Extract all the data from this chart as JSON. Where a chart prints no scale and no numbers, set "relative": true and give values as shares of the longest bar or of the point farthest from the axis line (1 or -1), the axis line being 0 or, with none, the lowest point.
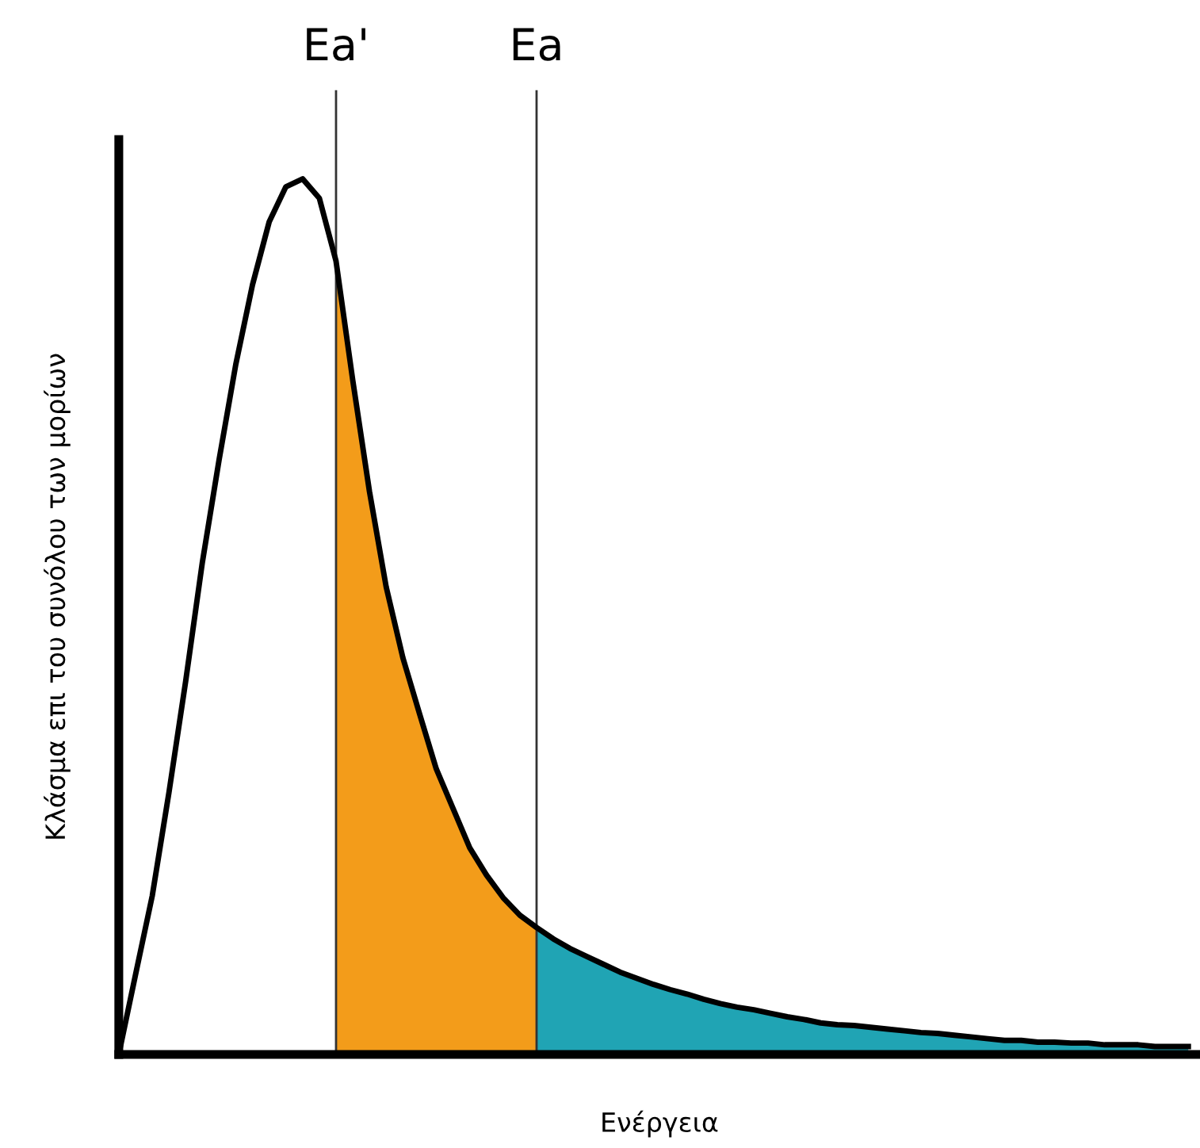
{
  "chart_data": {
    "type": "line",
    "relative": true,
    "xlabel": "Ενέργεια",
    "ylabel": "Κλάσμα επι του συνόλου των μορίων",
    "categories": [
      null,
      null,
      null,
      null,
      null,
      null,
      null,
      null,
      null,
      null,
      null,
      null,
      null,
      null,
      null,
      null,
      null,
      null,
      null,
      null,
      null,
      null,
      null,
      null,
      null,
      null,
      null,
      null,
      null,
      null,
      null,
      null,
      null,
      null,
      null,
      null,
      null,
      null,
      null,
      null,
      null,
      null,
      null,
      null,
      null,
      null,
      null,
      null,
      null,
      null,
      null,
      null,
      null,
      null,
      null,
      null,
      null,
      null,
      null,
      null,
      null,
      null,
      null,
      null,
      null
    ],
    "series": [
      {
        "type": "area",
        "color": "#f39c1a",
        "values": [
          null,
          null,
          null,
          null,
          null,
          null,
          null,
          null,
          null,
          null,
          null,
          null,
          null,
          0.906,
          0.77,
          0.643,
          0.534,
          0.453,
          0.389,
          0.326,
          0.281,
          0.236,
          0.205,
          0.179,
          0.159,
          0.145,
          null,
          null,
          null,
          null,
          null,
          null,
          null,
          null,
          null,
          null,
          null,
          null,
          null,
          null,
          null,
          null,
          null,
          null,
          null,
          null,
          null,
          null,
          null,
          null,
          null,
          null,
          null,
          null,
          null,
          null,
          null,
          null,
          null,
          null,
          null,
          null,
          null,
          null,
          null
        ]
      },
      {
        "type": "area",
        "color": "#20a4b4",
        "values": [
          null,
          null,
          null,
          null,
          null,
          null,
          null,
          null,
          null,
          null,
          null,
          null,
          null,
          null,
          null,
          null,
          null,
          null,
          null,
          null,
          null,
          null,
          null,
          null,
          null,
          0.145,
          0.132,
          0.121,
          0.112,
          0.103,
          0.094,
          0.087,
          0.08,
          0.074,
          0.069,
          0.063,
          0.058,
          0.054,
          0.051,
          0.047,
          0.043,
          0.04,
          0.036,
          0.034,
          0.033,
          0.031,
          0.029,
          0.027,
          0.025,
          0.024,
          0.022,
          0.02,
          0.018,
          0.016,
          0.016,
          0.014,
          0.014,
          0.013,
          0.013,
          0.011,
          0.011,
          0.011,
          0.009,
          0.009,
          0.009
        ]
      },
      {
        "color": "#000000",
        "values": [
          0,
          0.091,
          0.181,
          0.299,
          0.426,
          0.562,
          0.679,
          0.788,
          0.879,
          0.951,
          0.991,
          1.0,
          0.978,
          0.906,
          0.77,
          0.643,
          0.534,
          0.453,
          0.389,
          0.326,
          0.281,
          0.236,
          0.205,
          0.179,
          0.159,
          0.145,
          0.132,
          0.121,
          0.112,
          0.103,
          0.094,
          0.087,
          0.08,
          0.074,
          0.069,
          0.063,
          0.058,
          0.054,
          0.051,
          0.047,
          0.043,
          0.04,
          0.036,
          0.034,
          0.033,
          0.031,
          0.029,
          0.027,
          0.025,
          0.024,
          0.022,
          0.02,
          0.018,
          0.016,
          0.016,
          0.014,
          0.014,
          0.013,
          0.013,
          0.011,
          0.011,
          0.011,
          0.009,
          0.009,
          0.009
        ]
      }
    ],
    "annotations": [
      "Ea'",
      "Ea"
    ],
    "grid": false,
    "legend": false
  }
}
